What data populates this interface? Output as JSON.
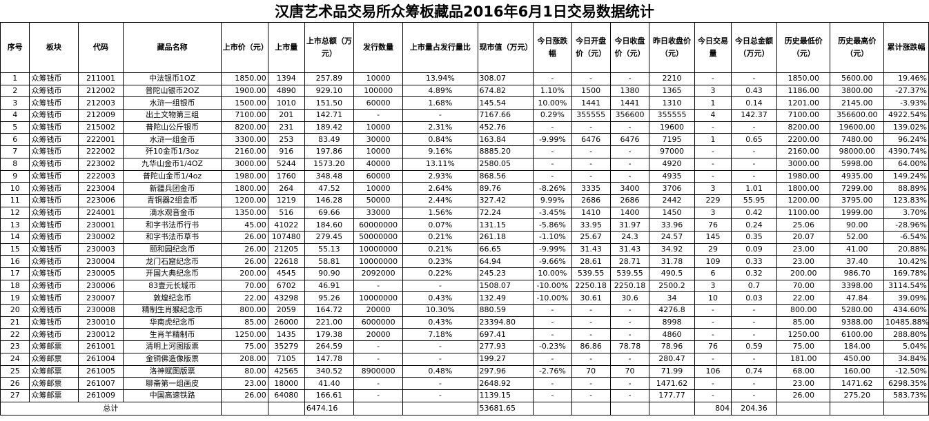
{
  "title": "汉唐艺术品交易所众筹板藏品2016年6月1日交易数据统计",
  "headers": [
    "序号",
    "板块",
    "代码",
    "藏品名称",
    "上市价（元）",
    "上市量",
    "上市总额（万元）",
    "发行数量",
    "上市量占发行量比",
    "现市值（万元）",
    "今日涨跌幅",
    "今日开盘价（元）",
    "今日收盘价（元）",
    "昨日收盘价（元）",
    "今日交易量",
    "今日总金额（万元）",
    "历史最低价（元）",
    "历史最高价（元）",
    "累计涨跌幅"
  ],
  "rows": [
    [
      "1",
      "众筹钱币",
      "211001",
      "中法银币1OZ",
      "1850.00",
      "1394",
      "257.89",
      "10000",
      "13.94%",
      "308.07",
      "-",
      "-",
      "-",
      "2210",
      "-",
      "-",
      "1850.00",
      "5600.00",
      "19.46%"
    ],
    [
      "2",
      "众筹钱币",
      "212002",
      "普陀山银币2OZ",
      "1900.00",
      "4890",
      "929.10",
      "100000",
      "4.89%",
      "674.82",
      "1.10%",
      "1500",
      "1380",
      "1365",
      "3",
      "0.43",
      "1186.00",
      "3800.00",
      "-27.37%"
    ],
    [
      "3",
      "众筹钱币",
      "212003",
      "水浒一组银币",
      "1500.00",
      "1010",
      "151.50",
      "60000",
      "1.68%",
      "145.54",
      "10.00%",
      "1441",
      "1441",
      "1310",
      "1",
      "0.14",
      "1201.00",
      "2145.00",
      "-3.93%"
    ],
    [
      "4",
      "众筹钱币",
      "212009",
      "出土文物第三组",
      "7100.00",
      "201",
      "142.71",
      "-",
      "-",
      "7167.66",
      "0.29%",
      "355555",
      "356600",
      "355555",
      "4",
      "142.37",
      "7100.00",
      "356600.00",
      "4922.54%"
    ],
    [
      "5",
      "众筹钱币",
      "215002",
      "普陀山公斤银币",
      "8200.00",
      "231",
      "189.42",
      "10000",
      "2.31%",
      "452.76",
      "-",
      "-",
      "-",
      "19600",
      "-",
      "-",
      "8200.00",
      "19600.00",
      "139.02%"
    ],
    [
      "6",
      "众筹钱币",
      "222001",
      "水浒一组金币",
      "3300.00",
      "253",
      "83.49",
      "30000",
      "0.84%",
      "163.84",
      "-9.99%",
      "6476",
      "6476",
      "7195",
      "1",
      "0.65",
      "2200.00",
      "7480.00",
      "96.24%"
    ],
    [
      "7",
      "众筹钱币",
      "222002",
      "歼10金币1/3oz",
      "2160.00",
      "916",
      "197.86",
      "10000",
      "9.16%",
      "8885.20",
      "-",
      "-",
      "-",
      "97000",
      "-",
      "-",
      "2160.00",
      "98000.00",
      "4390.74%"
    ],
    [
      "8",
      "众筹钱币",
      "223002",
      "九华山金币1/4OZ",
      "3000.00",
      "5244",
      "1573.20",
      "40000",
      "13.11%",
      "2580.05",
      "-",
      "-",
      "-",
      "4920",
      "-",
      "-",
      "3000.00",
      "5998.00",
      "64.00%"
    ],
    [
      "9",
      "众筹钱币",
      "222003",
      "普陀山金币1/4oz",
      "1980.00",
      "1760",
      "348.48",
      "60000",
      "2.93%",
      "868.56",
      "-",
      "-",
      "-",
      "4935",
      "-",
      "-",
      "1980.00",
      "4935.00",
      "149.24%"
    ],
    [
      "10",
      "众筹钱币",
      "223004",
      "新疆兵团金币",
      "1800.00",
      "264",
      "47.52",
      "10000",
      "2.64%",
      "89.76",
      "-8.26%",
      "3335",
      "3400",
      "3706",
      "3",
      "1.01",
      "1800.00",
      "7299.00",
      "88.89%"
    ],
    [
      "11",
      "众筹钱币",
      "223006",
      "青铜器2组金币",
      "1200.00",
      "1219",
      "146.28",
      "50000",
      "2.44%",
      "327.42",
      "9.99%",
      "2686",
      "2686",
      "2442",
      "229",
      "55.95",
      "1200.00",
      "3795.00",
      "123.83%"
    ],
    [
      "12",
      "众筹钱币",
      "224001",
      "滴水观音金币",
      "1350.00",
      "516",
      "69.66",
      "33000",
      "1.56%",
      "72.24",
      "-3.45%",
      "1410",
      "1400",
      "1450",
      "3",
      "0.42",
      "1100.00",
      "1999.00",
      "3.70%"
    ],
    [
      "13",
      "众筹钱币",
      "230001",
      "和字书法币行书",
      "45.00",
      "41022",
      "184.60",
      "60000000",
      "0.07%",
      "131.15",
      "-5.86%",
      "33.95",
      "31.97",
      "33.96",
      "76",
      "0.24",
      "25.06",
      "90.00",
      "-28.96%"
    ],
    [
      "14",
      "众筹钱币",
      "230002",
      "和字书法币草书",
      "26.00",
      "107480",
      "279.45",
      "50000000",
      "0.21%",
      "261.18",
      "-1.10%",
      "25.67",
      "24.3",
      "24.57",
      "145",
      "0.35",
      "20.07",
      "52.00",
      "-6.54%"
    ],
    [
      "15",
      "众筹钱币",
      "230003",
      "颐和园纪念币",
      "26.00",
      "21205",
      "55.13",
      "10000000",
      "0.21%",
      "66.65",
      "-9.99%",
      "31.43",
      "31.43",
      "34.92",
      "29",
      "0.09",
      "23.00",
      "41.00",
      "20.88%"
    ],
    [
      "16",
      "众筹钱币",
      "230004",
      "龙门石窟纪念币",
      "26.00",
      "22618",
      "58.81",
      "10000000",
      "0.23%",
      "64.94",
      "-9.66%",
      "28.61",
      "28.71",
      "31.78",
      "109",
      "0.33",
      "23.00",
      "37.40",
      "10.42%"
    ],
    [
      "17",
      "众筹钱币",
      "230005",
      "开国大典纪念币",
      "200.00",
      "4545",
      "90.90",
      "2092000",
      "0.22%",
      "245.23",
      "10.00%",
      "539.55",
      "539.55",
      "490.5",
      "6",
      "0.32",
      "200.00",
      "986.70",
      "169.78%"
    ],
    [
      "18",
      "众筹钱币",
      "230006",
      "83壹元长城币",
      "70.00",
      "6702",
      "46.91",
      "-",
      "-",
      "1508.07",
      "-10.00%",
      "2250.18",
      "2250.18",
      "2500.2",
      "3",
      "0.7",
      "70.00",
      "3398.00",
      "3114.54%"
    ],
    [
      "19",
      "众筹钱币",
      "230007",
      "敦煌纪念币",
      "22.00",
      "43298",
      "95.26",
      "10000000",
      "0.43%",
      "132.49",
      "-10.00%",
      "30.61",
      "30.6",
      "34",
      "10",
      "0.03",
      "22.00",
      "47.84",
      "39.09%"
    ],
    [
      "20",
      "众筹钱币",
      "230008",
      "精制生肖猴纪念币",
      "800.00",
      "2059",
      "164.72",
      "20000",
      "10.30%",
      "880.59",
      "-",
      "-",
      "-",
      "4276.8",
      "-",
      "-",
      "800.00",
      "5280.00",
      "434.60%"
    ],
    [
      "21",
      "众筹钱币",
      "230010",
      "华南虎纪念币",
      "85.00",
      "26000",
      "221.00",
      "6000000",
      "0.43%",
      "23394.80",
      "-",
      "-",
      "-",
      "8998",
      "-",
      "-",
      "85.00",
      "9388.00",
      "10485.88%"
    ],
    [
      "22",
      "众筹钱币",
      "230012",
      "生肖羊精制币",
      "1250.00",
      "1435",
      "179.38",
      "20000",
      "7.18%",
      "697.41",
      "-",
      "-",
      "-",
      "4860",
      "-",
      "-",
      "1250.00",
      "6100.00",
      "288.80%"
    ],
    [
      "23",
      "众筹邮票",
      "261001",
      "清明上河图版票",
      "75.00",
      "35279",
      "264.59",
      "-",
      "-",
      "277.93",
      "-0.23%",
      "86.86",
      "78.78",
      "78.96",
      "76",
      "0.59",
      "75.00",
      "184.00",
      "5.04%"
    ],
    [
      "24",
      "众筹邮票",
      "261004",
      "金铜佛造像版票",
      "208.00",
      "7105",
      "147.78",
      "-",
      "-",
      "199.27",
      "-",
      "-",
      "-",
      "280.47",
      "-",
      "-",
      "181.00",
      "450.00",
      "34.84%"
    ],
    [
      "25",
      "众筹邮票",
      "261005",
      "洛神赋图版票",
      "80.00",
      "42565",
      "340.52",
      "8900000",
      "0.48%",
      "297.96",
      "-2.76%",
      "70",
      "70",
      "71.99",
      "106",
      "0.74",
      "68.00",
      "160.00",
      "-12.50%"
    ],
    [
      "26",
      "众筹邮票",
      "261007",
      "聊斋第一组画皮",
      "23.00",
      "18000",
      "41.40",
      "-",
      "-",
      "2648.92",
      "-",
      "-",
      "-",
      "1471.62",
      "-",
      "-",
      "23.00",
      "1471.62",
      "6298.35%"
    ],
    [
      "27",
      "众筹邮票",
      "261009",
      "中国高速铁路",
      "26.00",
      "64080",
      "166.61",
      "-",
      "-",
      "1139.15",
      "-",
      "-",
      "-",
      "177.77",
      "-",
      "-",
      "26.00",
      "275.20",
      "583.73%"
    ]
  ],
  "total": {
    "label": "总计",
    "listing_total": "6474.16",
    "market_value": "53681.65",
    "volume": "804",
    "amount": "204.36"
  }
}
